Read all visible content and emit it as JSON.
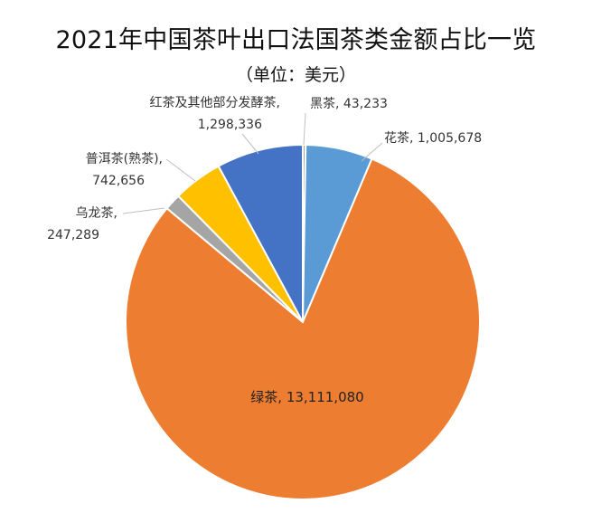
{
  "title": "2021年中国茶叶出口法国茶类金额占比一览",
  "subtitle": "（单位：美元）",
  "chart_data": {
    "type": "pie",
    "title": "2021年中国茶叶出口法国茶类金额占比一览",
    "subtitle": "（单位：美元）",
    "categories": [
      "黑茶",
      "花茶",
      "绿茶",
      "乌龙茶",
      "普洱茶(熟茶)",
      "红茶及其他部分发酵茶"
    ],
    "values": [
      43233,
      1005678,
      13111080,
      247289,
      742656,
      1298336
    ],
    "value_labels": [
      "43,233",
      "1,005,678",
      "13,111,080",
      "247,289",
      "742,656",
      "1,298,336"
    ],
    "colors": [
      "#A5A5A5",
      "#5B9BD5",
      "#ED7D31",
      "#A5A5A5",
      "#FFC000",
      "#4472C4"
    ],
    "start_angle_deg": 0,
    "direction": "clockwise",
    "legend": "none"
  }
}
